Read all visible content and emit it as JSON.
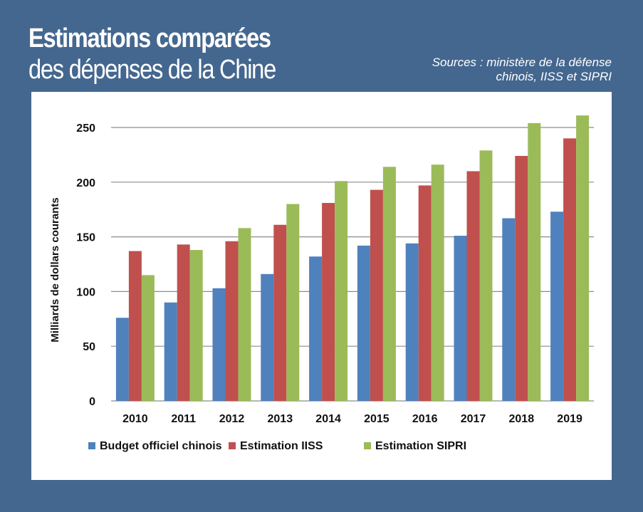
{
  "header": {
    "title_line1": "Estimations comparées",
    "title_line2": "des dépenses de la Chine",
    "sources_line1": "Sources : ministère de la défense",
    "sources_line2": "chinois, IISS et SIPRI"
  },
  "colors": {
    "background": "#44678f",
    "panel": "#ffffff"
  },
  "chart_data": {
    "type": "bar",
    "title": "",
    "xlabel": "",
    "ylabel": "Milliards de dollars courants",
    "ylim": [
      0,
      250
    ],
    "yticks": [
      0,
      50,
      100,
      150,
      200,
      250
    ],
    "grid": true,
    "legend_position": "bottom",
    "categories": [
      "2010",
      "2011",
      "2012",
      "2013",
      "2014",
      "2015",
      "2016",
      "2017",
      "2018",
      "2019"
    ],
    "series": [
      {
        "name": "Budget officiel chinois",
        "color": "#4f81bd",
        "values": [
          76,
          90,
          103,
          116,
          132,
          142,
          144,
          151,
          167,
          173
        ]
      },
      {
        "name": "Estimation IISS",
        "color": "#c0504d",
        "values": [
          137,
          143,
          146,
          161,
          181,
          193,
          197,
          210,
          224,
          240
        ]
      },
      {
        "name": "Estimation SIPRI",
        "color": "#9bbb59",
        "values": [
          115,
          138,
          158,
          180,
          201,
          214,
          216,
          229,
          254,
          261
        ]
      }
    ]
  }
}
